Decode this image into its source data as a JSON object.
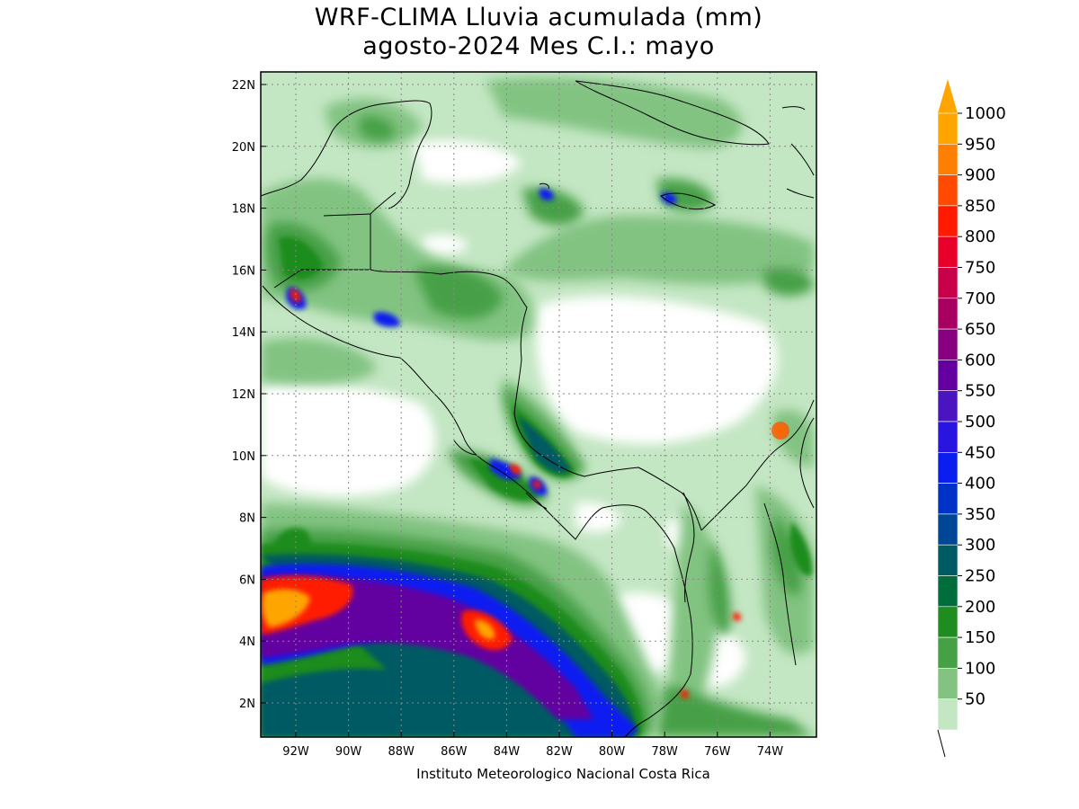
{
  "title": "WRF-CLIMA Lluvia acumulada (mm)",
  "subtitle": "agosto-2024 Mes C.I.: mayo",
  "credit": "Instituto Meteorologico Nacional Costa Rica",
  "lon_ticks": [
    "92W",
    "90W",
    "88W",
    "86W",
    "84W",
    "82W",
    "80W",
    "78W",
    "76W",
    "74W"
  ],
  "lat_ticks": [
    "22N",
    "20N",
    "18N",
    "16N",
    "14N",
    "12N",
    "10N",
    "8N",
    "6N",
    "4N",
    "2N"
  ],
  "colorbar": {
    "levels": [
      "1000",
      "950",
      "900",
      "850",
      "800",
      "750",
      "700",
      "650",
      "600",
      "550",
      "500",
      "450",
      "400",
      "350",
      "300",
      "250",
      "200",
      "150",
      "100",
      "50"
    ],
    "colors": [
      "#ffa500",
      "#ff7f00",
      "#ff4a00",
      "#ff1a00",
      "#e8002a",
      "#c8004a",
      "#a80060",
      "#870080",
      "#6400a0",
      "#4a14c0",
      "#2a14e0",
      "#0a1ef0",
      "#0032c8",
      "#004696",
      "#005a64",
      "#006e3c",
      "#1e8c1e",
      "#46a046",
      "#82c382",
      "#c3e6c3"
    ],
    "over_color": "#ffa500"
  },
  "colors": {
    "light_green": "#c3e6c3",
    "mid_green": "#82c382",
    "green": "#46a046",
    "dark_green": "#1e8c1e",
    "teal": "#005a64",
    "blue": "#0a1ef0",
    "purple": "#6400a0",
    "red": "#ff1a00",
    "orange": "#ffa500"
  }
}
